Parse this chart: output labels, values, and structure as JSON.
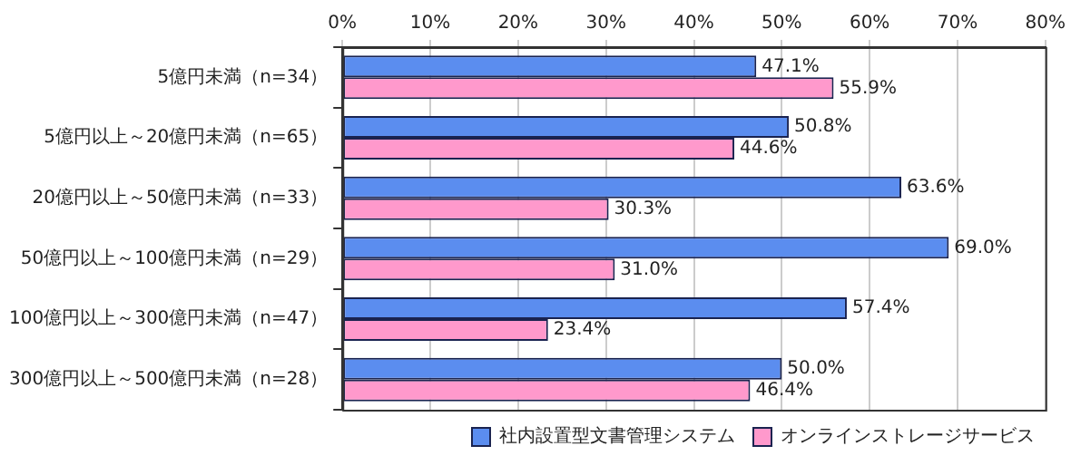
{
  "chart_data": {
    "type": "bar",
    "orientation": "horizontal",
    "categories": [
      "5億円未満（n=34）",
      "5億円以上～20億円未満（n=65）",
      "20億円以上～50億円未満（n=33）",
      "50億円以上～100億円未満（n=29）",
      "100億円以上～300億円未満（n=47）",
      "300億円以上～500億円未満（n=28）"
    ],
    "series": [
      {
        "name": "社内設置型文書管理システム",
        "color": "#5b8def",
        "values": [
          47.1,
          50.8,
          63.6,
          69.0,
          57.4,
          50.0
        ],
        "value_labels": [
          "47.1%",
          "50.8%",
          "63.6%",
          "69.0%",
          "57.4%",
          "50.0%"
        ]
      },
      {
        "name": "オンラインストレージサービス",
        "color": "#ff99cc",
        "values": [
          55.9,
          44.6,
          30.3,
          31.0,
          23.4,
          46.4
        ],
        "value_labels": [
          "55.9%",
          "44.6%",
          "30.3%",
          "31.0%",
          "23.4%",
          "46.4%"
        ]
      }
    ],
    "xlim": [
      0,
      80
    ],
    "xticks": [
      {
        "value": 0,
        "label": "0%"
      },
      {
        "value": 10,
        "label": "10%"
      },
      {
        "value": 20,
        "label": "20%"
      },
      {
        "value": 30,
        "label": "30%"
      },
      {
        "value": 40,
        "label": "40%"
      },
      {
        "value": 50,
        "label": "50%"
      },
      {
        "value": 60,
        "label": "60%"
      },
      {
        "value": 70,
        "label": "70%"
      },
      {
        "value": 80,
        "label": "80%"
      }
    ],
    "grid": "x",
    "legend": "bottom right"
  }
}
